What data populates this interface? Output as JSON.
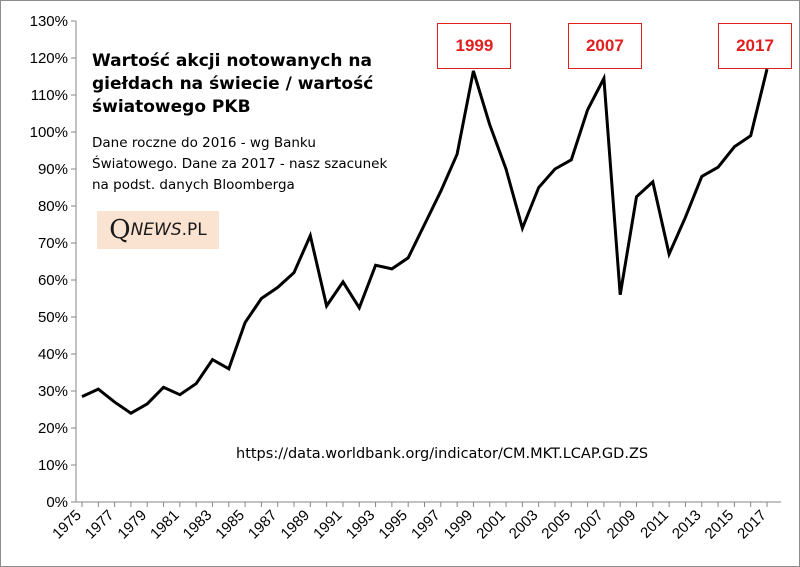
{
  "chart_data": {
    "type": "line",
    "title": "Wartość akcji notowanych na giełdach na świecie / wartość światowego PKB",
    "subtitle": "Dane roczne do 2016 - wg Banku Światowego. Dane za 2017 - nasz szacunek na podst. danych Bloomberga",
    "source": "https://data.worldbank.org/indicator/CM.MKT.LCAP.GD.ZS",
    "logo": {
      "q": "Q",
      "news": "NEWS",
      "pl": ".PL"
    },
    "x": [
      1975,
      1976,
      1977,
      1978,
      1979,
      1980,
      1981,
      1982,
      1983,
      1984,
      1985,
      1986,
      1987,
      1988,
      1989,
      1990,
      1991,
      1992,
      1993,
      1994,
      1995,
      1996,
      1997,
      1998,
      1999,
      2000,
      2001,
      2002,
      2003,
      2004,
      2005,
      2006,
      2007,
      2008,
      2009,
      2010,
      2011,
      2012,
      2013,
      2014,
      2015,
      2016,
      2017
    ],
    "x_tick_labels": [
      "1975",
      "1977",
      "1979",
      "1981",
      "1983",
      "1985",
      "1987",
      "1989",
      "1991",
      "1993",
      "1995",
      "1997",
      "1999",
      "2001",
      "2003",
      "2005",
      "2007",
      "2009",
      "2011",
      "2013",
      "2015",
      "2017"
    ],
    "series": [
      {
        "values": [
          28.5,
          30.5,
          27,
          24,
          26.5,
          31,
          29,
          32,
          38.5,
          36,
          48.5,
          55,
          58,
          62,
          72,
          53,
          59.5,
          52.5,
          64,
          63,
          66,
          75,
          84,
          94,
          116.5,
          102,
          90,
          74,
          85,
          90,
          92.5,
          106,
          114.5,
          56,
          82.5,
          86.5,
          67,
          77,
          88,
          90.5,
          96,
          99,
          117
        ]
      }
    ],
    "ylim": [
      0,
      130
    ],
    "y_tick_labels": [
      "0%",
      "10%",
      "20%",
      "30%",
      "40%",
      "50%",
      "60%",
      "70%",
      "80%",
      "90%",
      "100%",
      "110%",
      "120%",
      "130%"
    ],
    "annotations": [
      {
        "label": "1999",
        "year": 1999
      },
      {
        "label": "2007",
        "year": 2007
      },
      {
        "label": "2017",
        "year": 2017
      }
    ],
    "line_color": "#000000",
    "annotation_color": "#e02020"
  }
}
